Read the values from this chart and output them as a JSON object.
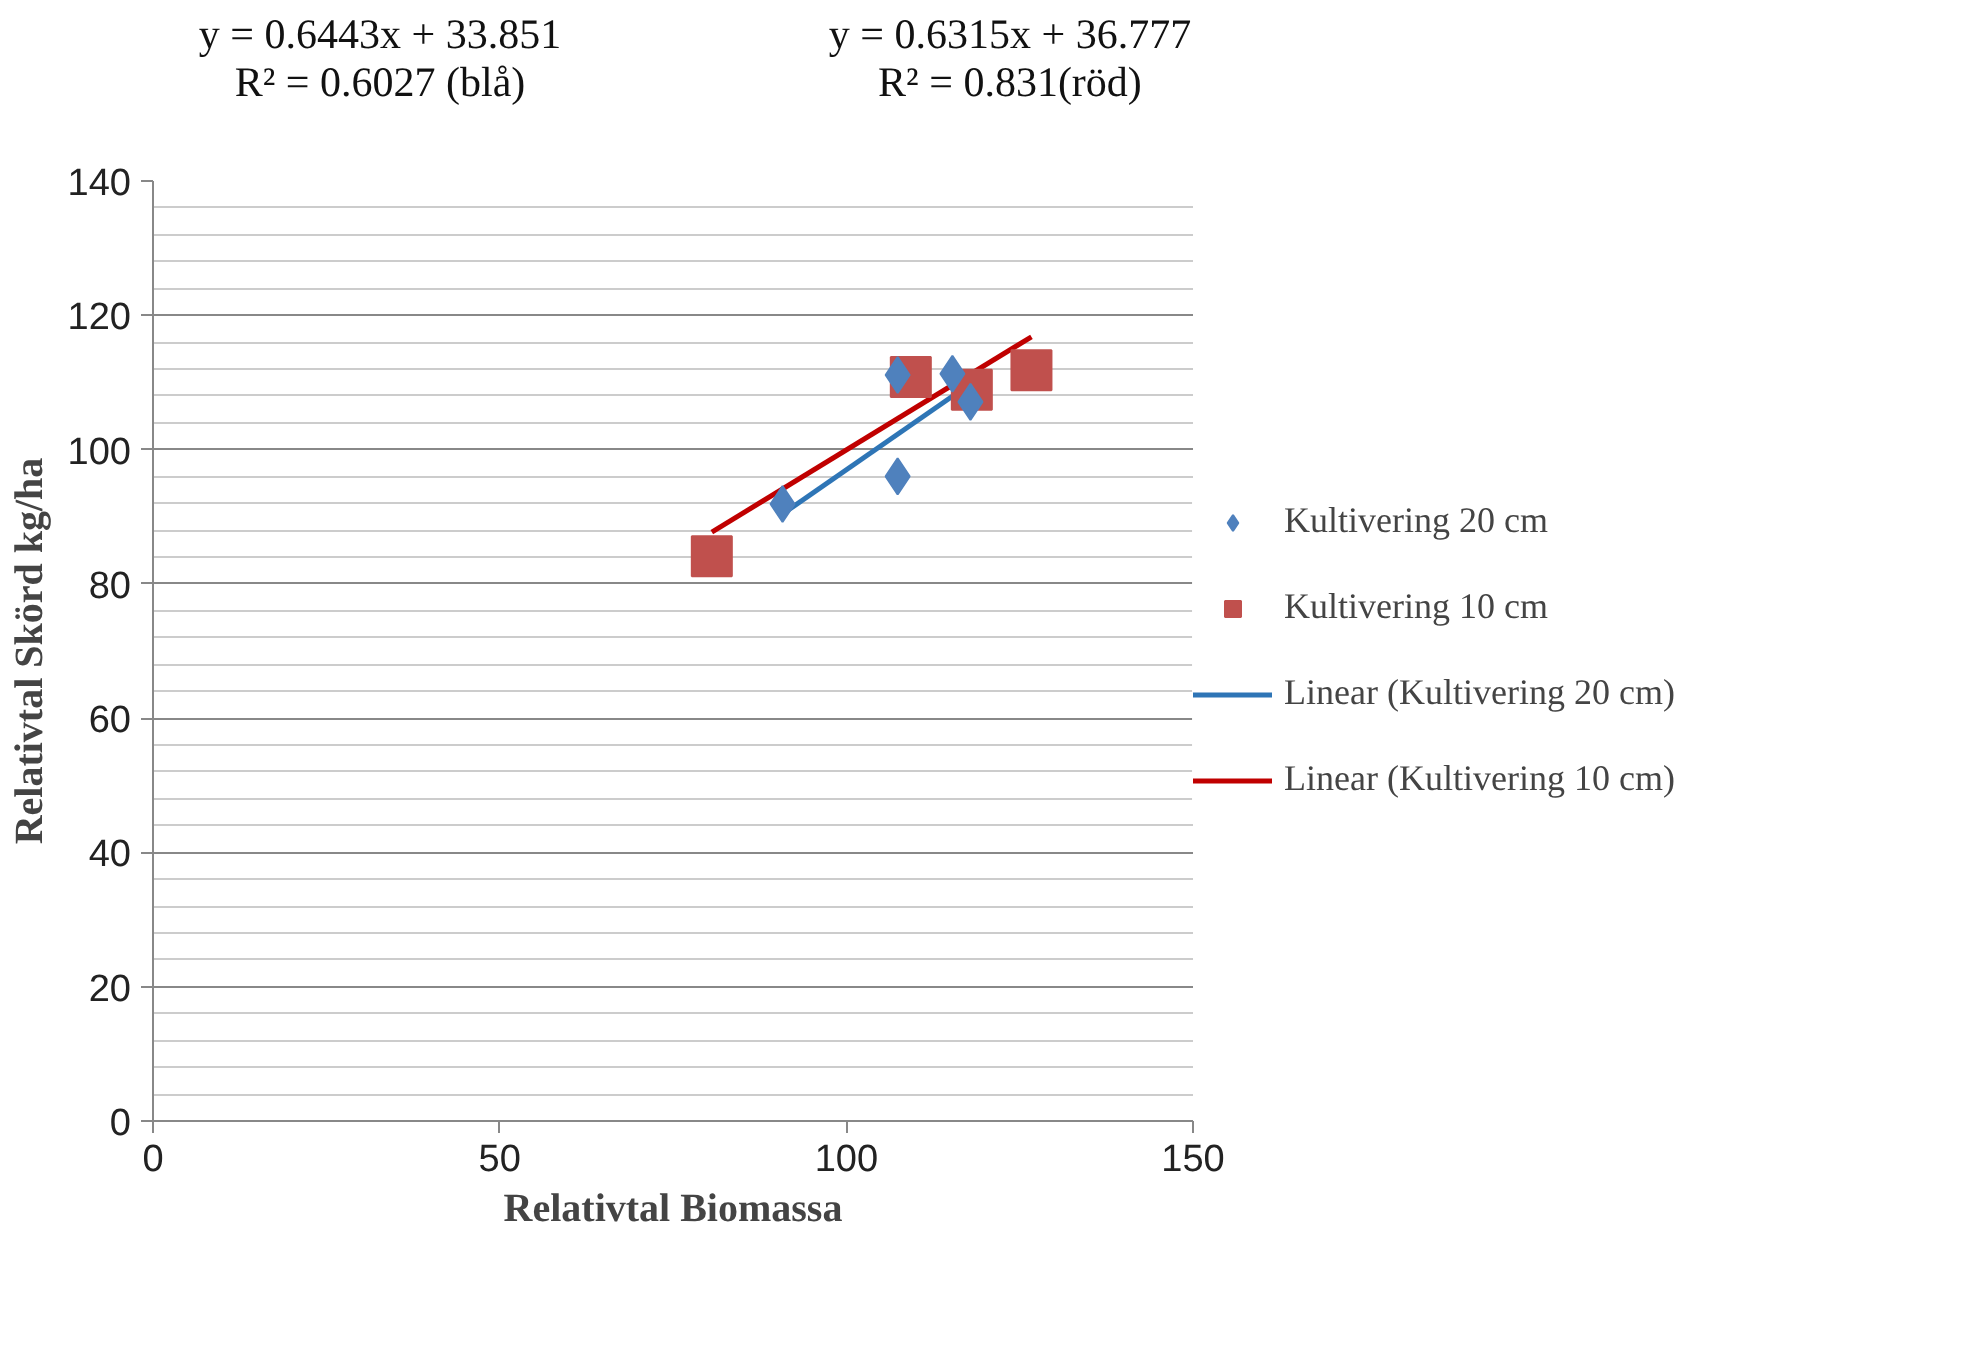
{
  "chart_data": {
    "type": "scatter",
    "xlabel": "Relativtal Biomassa",
    "ylabel": "Relativtal Skörd kg/ha",
    "annotations": [
      "y = 0.6443x + 33.851\nR² = 0.6027 (blå)",
      "y = 0.6315x + 36.777\nR² = 0.831(röd)"
    ],
    "xlim": [
      0,
      150
    ],
    "xticks": [
      0,
      50,
      100,
      150
    ],
    "ylim": [
      0,
      140
    ],
    "yticks": [
      0,
      20,
      40,
      60,
      80,
      100,
      120,
      140
    ],
    "grid": "y",
    "legend": "right",
    "series": [
      {
        "name": "Kultivering 20 cm",
        "type": "scatter",
        "marker": "diamond",
        "color": "#4f81bd",
        "x": [
          90.8,
          107.4,
          107.4,
          115.3,
          117.9
        ],
        "values": [
          91.9,
          96.0,
          111.1,
          111.3,
          107.1
        ]
      },
      {
        "name": "Kultivering 10 cm",
        "type": "scatter",
        "marker": "square",
        "color": "#c0504d",
        "x": [
          80.6,
          109.3,
          118.1,
          126.7
        ],
        "values": [
          84.1,
          110.8,
          108.9,
          111.8
        ]
      },
      {
        "name": "Linear (Kultivering 20 cm)",
        "type": "line",
        "line_style": "solid",
        "color": "#2e75b6",
        "x": [
          90.8,
          117.9
        ],
        "values": [
          90.4,
          109.8
        ]
      },
      {
        "name": "Linear (Kultivering 10 cm)",
        "type": "line",
        "line_style": "solid",
        "color": "#c00000",
        "x": [
          80.6,
          126.7
        ],
        "values": [
          87.7,
          116.8
        ]
      }
    ]
  }
}
